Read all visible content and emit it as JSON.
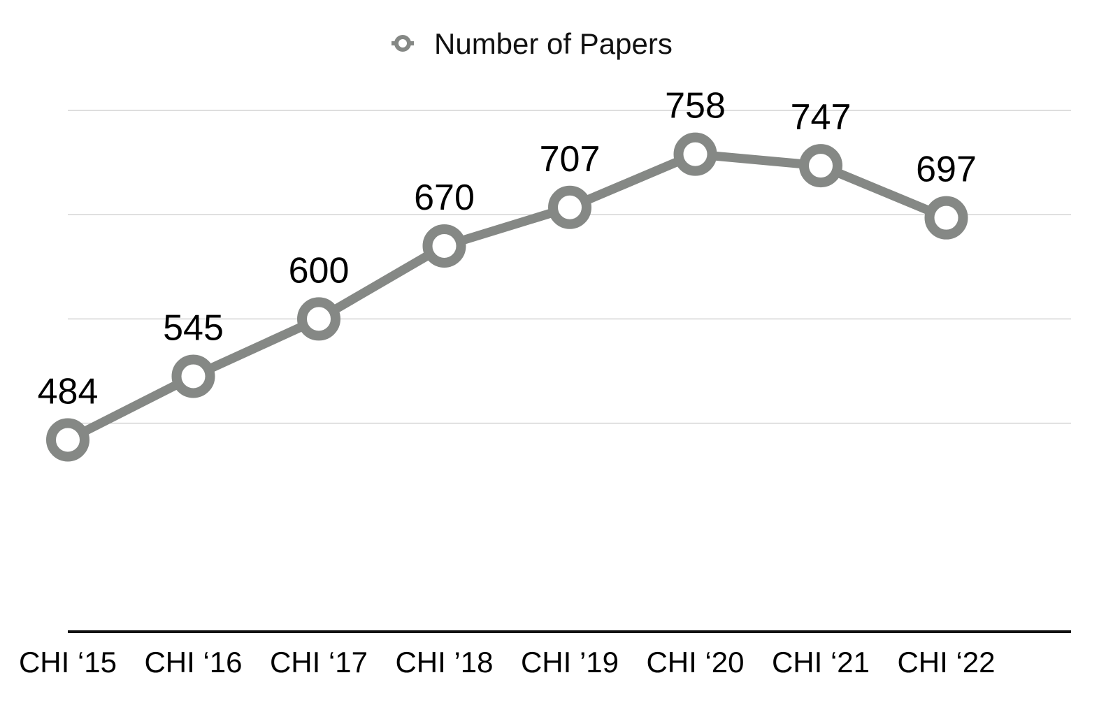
{
  "chart_data": {
    "type": "line",
    "title": "",
    "xlabel": "",
    "ylabel": "",
    "categories": [
      "CHI ‘15",
      "CHI ‘16",
      "CHI ‘17",
      "CHI ’18",
      "CHI ’19",
      "CHI ‘20",
      "CHI ‘21",
      "CHI ‘22"
    ],
    "series": [
      {
        "name": "Number of Papers",
        "values": [
          484,
          545,
          600,
          670,
          707,
          758,
          747,
          697
        ],
        "color": "#858885"
      }
    ],
    "ylim": [
      300,
      800
    ],
    "y_grid_values": [
      500,
      600,
      700,
      800
    ],
    "grid": true,
    "legend": "top-center",
    "data_labels": true,
    "show_y_tick_labels": false
  },
  "colors": {
    "series_line": "#858885",
    "gridline": "#d4d4d4",
    "axis": "#111111",
    "marker_fill": "#ffffff"
  }
}
